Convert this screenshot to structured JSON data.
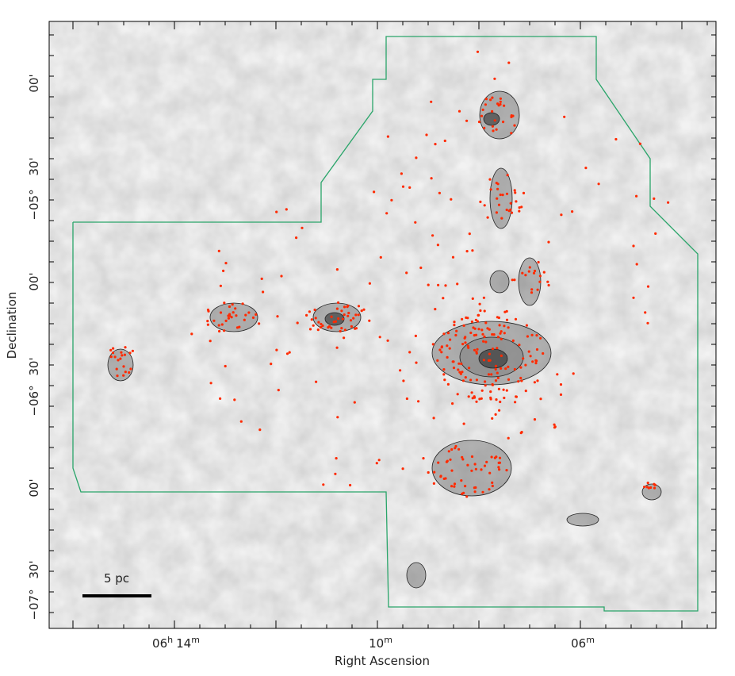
{
  "axes": {
    "x_label": "Right Ascension",
    "y_label": "Declination",
    "x_ticks": [
      {
        "hours": "06",
        "hours_unit": "h",
        "minutes": "14",
        "minutes_unit": "m"
      },
      {
        "minutes": "10",
        "minutes_unit": "m"
      },
      {
        "minutes": "06",
        "minutes_unit": "m"
      }
    ],
    "y_ticks": [
      {
        "text": "00'"
      },
      {
        "text": "30'"
      },
      {
        "text": "−05°"
      },
      {
        "text": "00'"
      },
      {
        "text": "30'"
      },
      {
        "text": "−06°"
      },
      {
        "text": "00'"
      },
      {
        "text": "30'"
      },
      {
        "text": "−07°"
      }
    ]
  },
  "scale_bar": {
    "label": "5 pc"
  }
}
